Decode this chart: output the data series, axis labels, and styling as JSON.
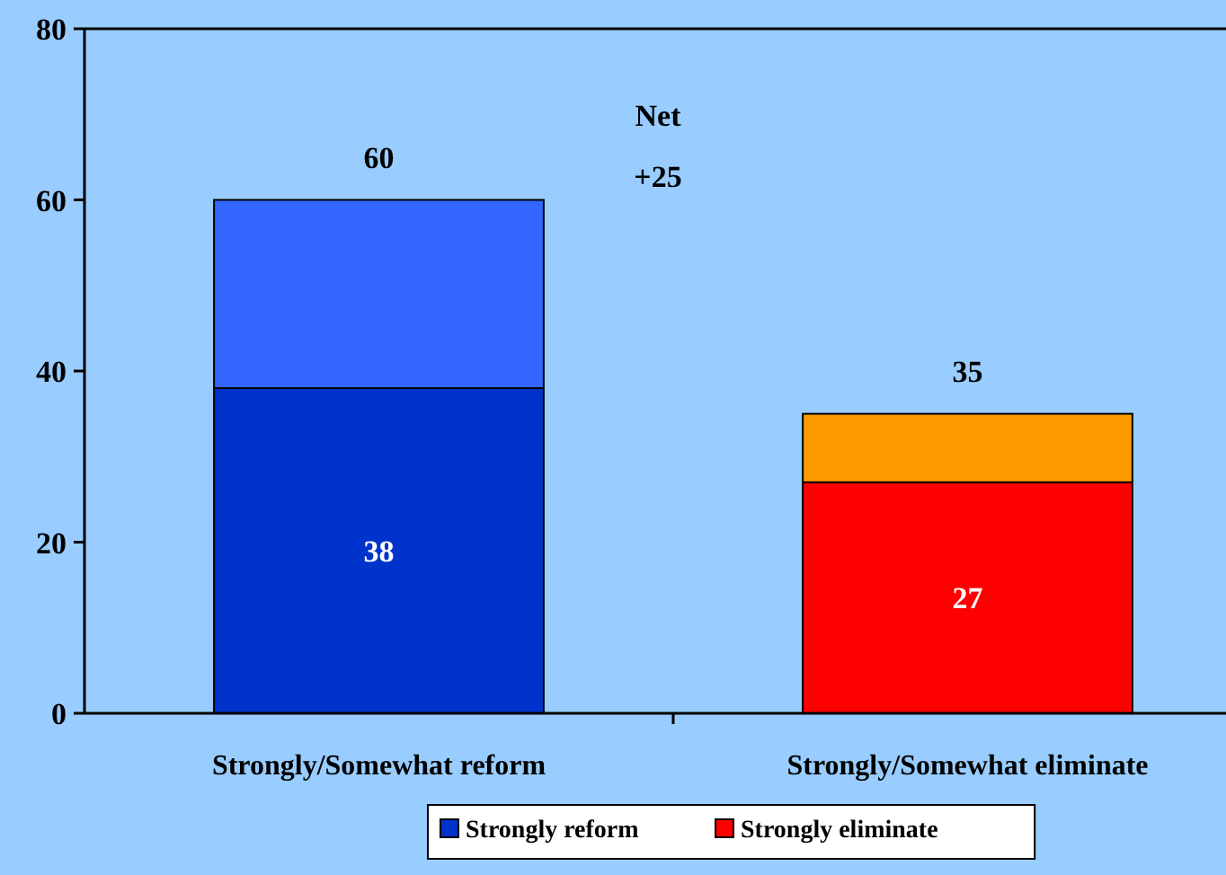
{
  "chart_data": {
    "type": "bar",
    "stacked": true,
    "categories": [
      "Strongly/Somewhat reform",
      "Strongly/Somewhat eliminate"
    ],
    "series": [
      {
        "name": "Strongly reform",
        "color": "#0033cc",
        "values": [
          38,
          null
        ],
        "value_labels": [
          "38",
          null
        ]
      },
      {
        "name": "Strongly eliminate",
        "color": "#ff0000",
        "values": [
          null,
          27
        ],
        "value_labels": [
          null,
          "27"
        ]
      },
      {
        "color": "#3366ff",
        "values": [
          22,
          null
        ]
      },
      {
        "color": "#ff9900",
        "values": [
          null,
          8
        ]
      }
    ],
    "totals": [
      "60",
      "35"
    ],
    "annotations": [
      "Net",
      "+25"
    ],
    "ylim": [
      0,
      80
    ],
    "yticks": [
      0,
      20,
      40,
      60,
      80
    ],
    "grid": false,
    "legend": "bottom"
  }
}
